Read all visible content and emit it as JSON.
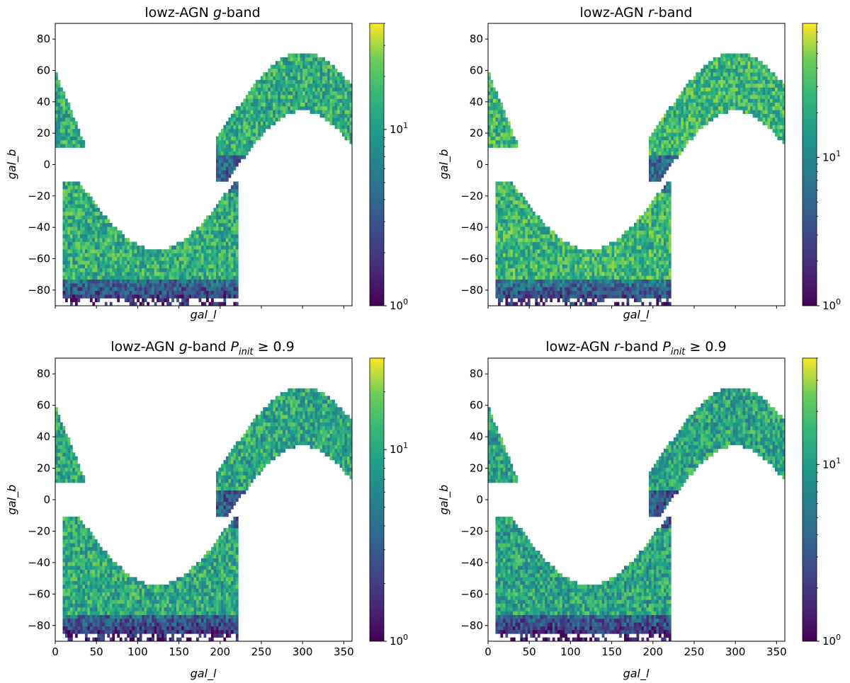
{
  "figure": {
    "layout": "2x2 grid of 2D histograms (hexbin-style sky maps)"
  },
  "chart_data": [
    {
      "type": "heatmap",
      "title_prefix": "lowz-AGN ",
      "band": "g",
      "title_suffix": "-band",
      "condition": "",
      "xlabel": "gal_l",
      "ylabel": "gal_b",
      "xlim": [
        0,
        360
      ],
      "ylim": [
        -90,
        90
      ],
      "xticks": [],
      "yticks": [
        "80",
        "60",
        "40",
        "20",
        "0",
        "−20",
        "−40",
        "−60",
        "−80"
      ],
      "colorbar": {
        "scale": "log",
        "min": 1,
        "max": 40,
        "ticks": [
          {
            "base": "10",
            "exp": "0"
          },
          {
            "base": "10",
            "exp": "1"
          }
        ],
        "colormap": "viridis"
      },
      "density_level": 0.62
    },
    {
      "type": "heatmap",
      "title_prefix": "lowz-AGN ",
      "band": "r",
      "title_suffix": "-band",
      "condition": "",
      "xlabel": "gal_l",
      "ylabel": "gal_b",
      "xlim": [
        0,
        360
      ],
      "ylim": [
        -90,
        90
      ],
      "xticks": [],
      "yticks": [
        "80",
        "60",
        "40",
        "20",
        "0",
        "−20",
        "−40",
        "−60",
        "−80"
      ],
      "colorbar": {
        "scale": "log",
        "min": 1,
        "max": 80,
        "ticks": [
          {
            "base": "10",
            "exp": "0"
          },
          {
            "base": "10",
            "exp": "1"
          }
        ],
        "colormap": "viridis"
      },
      "density_level": 0.66
    },
    {
      "type": "heatmap",
      "title_prefix": "lowz-AGN ",
      "band": "g",
      "title_suffix": "-band ",
      "condition": "P_init ≥ 0.9",
      "condition_symbol": "P",
      "condition_sub": "init",
      "condition_rest": " ≥ 0.9",
      "xlabel": "gal_l",
      "ylabel": "gal_b",
      "xlim": [
        0,
        360
      ],
      "ylim": [
        -90,
        90
      ],
      "xticks": [
        "0",
        "50",
        "100",
        "150",
        "200",
        "250",
        "300",
        "350"
      ],
      "yticks": [
        "80",
        "60",
        "40",
        "20",
        "0",
        "−20",
        "−40",
        "−60",
        "−80"
      ],
      "colorbar": {
        "scale": "log",
        "min": 1,
        "max": 30,
        "ticks": [
          {
            "base": "10",
            "exp": "0"
          },
          {
            "base": "10",
            "exp": "1"
          }
        ],
        "colormap": "viridis"
      },
      "density_level": 0.6
    },
    {
      "type": "heatmap",
      "title_prefix": "lowz-AGN ",
      "band": "r",
      "title_suffix": "-band ",
      "condition": "P_init ≥ 0.9",
      "condition_symbol": "P",
      "condition_sub": "init",
      "condition_rest": " ≥ 0.9",
      "xlabel": "gal_l",
      "ylabel": "gal_b",
      "xlim": [
        0,
        360
      ],
      "ylim": [
        -90,
        90
      ],
      "xticks": [
        "0",
        "50",
        "100",
        "150",
        "200",
        "250",
        "300",
        "350"
      ],
      "yticks": [
        "80",
        "60",
        "40",
        "20",
        "0",
        "−20",
        "−40",
        "−60",
        "−80"
      ],
      "colorbar": {
        "scale": "log",
        "min": 1,
        "max": 40,
        "ticks": [
          {
            "base": "10",
            "exp": "0"
          },
          {
            "base": "10",
            "exp": "1"
          }
        ],
        "colormap": "viridis"
      },
      "density_level": 0.58
    }
  ]
}
